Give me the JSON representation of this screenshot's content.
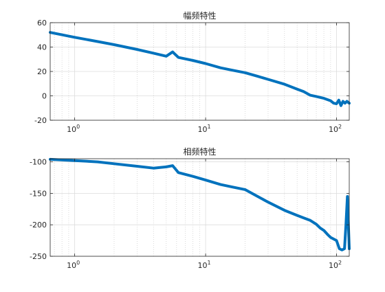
{
  "chart_data": [
    {
      "type": "line",
      "title": "幅频特性",
      "xlabel": "",
      "ylabel": "",
      "xscale": "log",
      "xlim": [
        0.65,
        125
      ],
      "ylim": [
        -20,
        60
      ],
      "yticks": [
        -20,
        0,
        20,
        40,
        60
      ],
      "xticks": [
        {
          "value": 1,
          "base": "10",
          "exp": "0"
        },
        {
          "value": 10,
          "base": "10",
          "exp": "1"
        },
        {
          "value": 100,
          "base": "10",
          "exp": "2"
        }
      ],
      "grid": true,
      "color": "#0072bd",
      "series": [
        {
          "x": [
            0.65,
            1,
            1.5,
            2,
            3,
            4,
            5,
            5.6,
            6.2,
            8,
            10,
            13,
            16,
            20,
            25,
            30,
            40,
            50,
            56,
            63,
            70,
            80,
            90,
            95,
            100,
            104,
            108,
            112,
            116,
            120,
            125
          ],
          "y": [
            52,
            48,
            44.5,
            42,
            38,
            35,
            32.5,
            36,
            31.5,
            29,
            26.5,
            23,
            21,
            19,
            16,
            13.5,
            9.5,
            5.5,
            3.5,
            0.5,
            -0.5,
            -2,
            -4,
            -6,
            -6.5,
            -3.5,
            -8,
            -4.5,
            -6,
            -4.5,
            -6
          ]
        }
      ]
    },
    {
      "type": "line",
      "title": "相频特性",
      "xlabel": "",
      "ylabel": "",
      "xscale": "log",
      "xlim": [
        0.65,
        125
      ],
      "ylim": [
        -250,
        -95
      ],
      "yticks": [
        -250,
        -200,
        -150,
        -100
      ],
      "xticks": [
        {
          "value": 1,
          "base": "10",
          "exp": "0"
        },
        {
          "value": 10,
          "base": "10",
          "exp": "1"
        },
        {
          "value": 100,
          "base": "10",
          "exp": "2"
        }
      ],
      "grid": true,
      "color": "#0072bd",
      "series": [
        {
          "x": [
            0.65,
            1,
            1.5,
            2,
            3,
            4,
            4.5,
            5,
            5.6,
            6.2,
            8,
            10,
            13,
            16,
            20,
            25,
            30,
            40,
            50,
            56,
            63,
            70,
            75,
            80,
            85,
            90,
            100,
            105,
            110,
            115,
            118,
            121,
            125
          ],
          "y": [
            -96,
            -98,
            -100,
            -103,
            -107,
            -110,
            -109,
            -108,
            -106,
            -117,
            -123,
            -129,
            -136,
            -140,
            -144,
            -155,
            -164,
            -177,
            -185,
            -189,
            -193,
            -199,
            -205,
            -209,
            -215,
            -220,
            -225,
            -238,
            -240,
            -238,
            -200,
            -155,
            -238
          ]
        }
      ]
    }
  ]
}
